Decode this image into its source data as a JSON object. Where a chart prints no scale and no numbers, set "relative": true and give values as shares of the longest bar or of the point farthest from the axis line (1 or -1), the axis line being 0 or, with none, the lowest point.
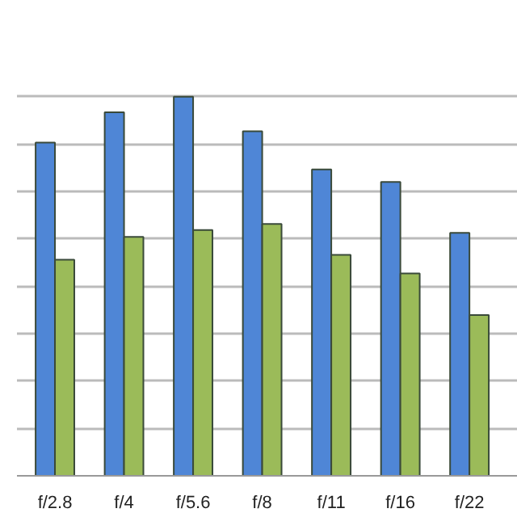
{
  "chart_data": {
    "type": "bar",
    "relative": true,
    "grid": "y",
    "categories": [
      "f/2.8",
      "f/4",
      "f/5.6",
      "f/8",
      "f/11",
      "f/16",
      "f/22"
    ],
    "series": [
      {
        "color": "#4f86d6",
        "values": [
          0.879,
          0.959,
          1,
          0.909,
          0.808,
          0.775,
          0.641
        ]
      },
      {
        "color": "#9bbb59",
        "values": [
          0.57,
          0.63,
          0.648,
          0.664,
          0.583,
          0.534,
          0.424
        ]
      }
    ]
  }
}
